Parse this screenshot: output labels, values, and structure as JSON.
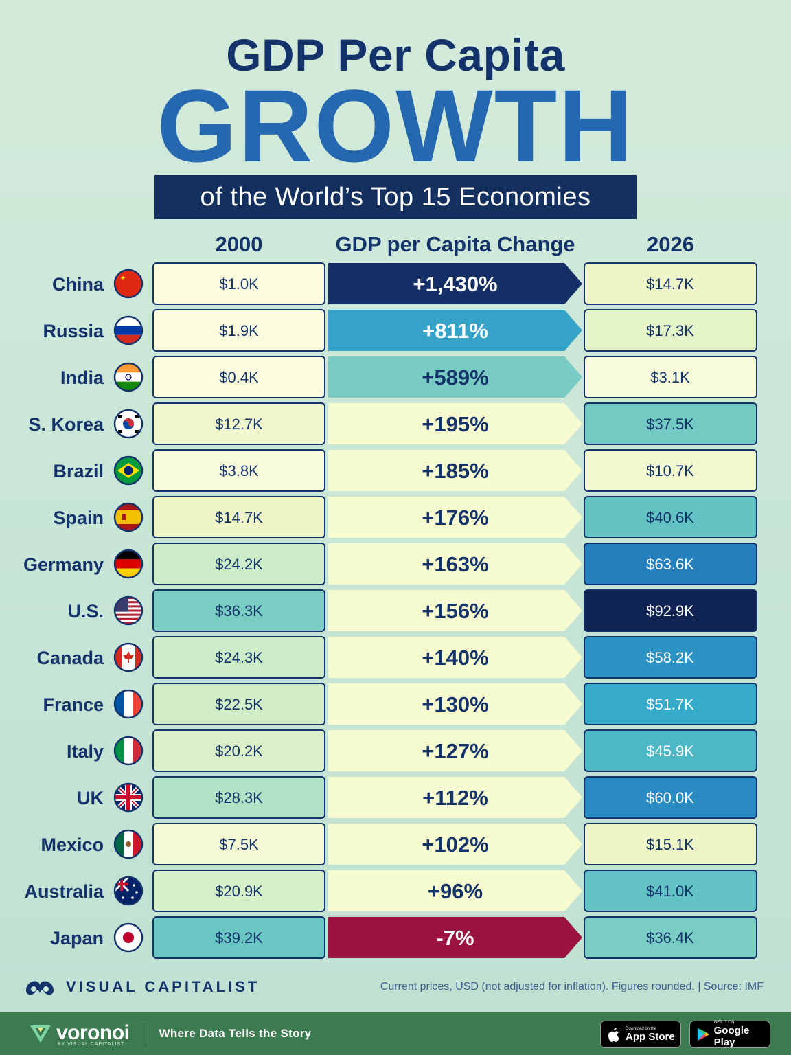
{
  "header": {
    "title_line1": "GDP Per Capita",
    "title_line2": "GROWTH",
    "subtitle": "of the World’s Top 15 Economies"
  },
  "columns": {
    "col_2000": "2000",
    "col_change": "GDP per Capita Change",
    "col_2026": "2026"
  },
  "colors": {
    "navy": "#13305f",
    "blue": "#2b8fc4",
    "teal": "#6dc4c0",
    "pale": "#fbfbdc",
    "negative": "#9b1340",
    "background": "#c9e6d7"
  },
  "chart_data": {
    "type": "table",
    "title": "GDP Per Capita GROWTH of the World’s Top 15 Economies",
    "columns": [
      "2000",
      "GDP per Capita Change",
      "2026"
    ],
    "rows": [
      {
        "country": "China",
        "flag": "china-flag-icon",
        "gdp_2000": 1.0,
        "label_2000": "$1.0K",
        "change_pct": 1430,
        "change_label": "+1,430%",
        "gdp_2026": 14.7,
        "label_2026": "$14.7K"
      },
      {
        "country": "Russia",
        "flag": "russia-flag-icon",
        "gdp_2000": 1.9,
        "label_2000": "$1.9K",
        "change_pct": 811,
        "change_label": "+811%",
        "gdp_2026": 17.3,
        "label_2026": "$17.3K"
      },
      {
        "country": "India",
        "flag": "india-flag-icon",
        "gdp_2000": 0.4,
        "label_2000": "$0.4K",
        "change_pct": 589,
        "change_label": "+589%",
        "gdp_2026": 3.1,
        "label_2026": "$3.1K"
      },
      {
        "country": "S. Korea",
        "flag": "south-korea-flag-icon",
        "gdp_2000": 12.7,
        "label_2000": "$12.7K",
        "change_pct": 195,
        "change_label": "+195%",
        "gdp_2026": 37.5,
        "label_2026": "$37.5K"
      },
      {
        "country": "Brazil",
        "flag": "brazil-flag-icon",
        "gdp_2000": 3.8,
        "label_2000": "$3.8K",
        "change_pct": 185,
        "change_label": "+185%",
        "gdp_2026": 10.7,
        "label_2026": "$10.7K"
      },
      {
        "country": "Spain",
        "flag": "spain-flag-icon",
        "gdp_2000": 14.7,
        "label_2000": "$14.7K",
        "change_pct": 176,
        "change_label": "+176%",
        "gdp_2026": 40.6,
        "label_2026": "$40.6K"
      },
      {
        "country": "Germany",
        "flag": "germany-flag-icon",
        "gdp_2000": 24.2,
        "label_2000": "$24.2K",
        "change_pct": 163,
        "change_label": "+163%",
        "gdp_2026": 63.6,
        "label_2026": "$63.6K"
      },
      {
        "country": "U.S.",
        "flag": "usa-flag-icon",
        "gdp_2000": 36.3,
        "label_2000": "$36.3K",
        "change_pct": 156,
        "change_label": "+156%",
        "gdp_2026": 92.9,
        "label_2026": "$92.9K"
      },
      {
        "country": "Canada",
        "flag": "canada-flag-icon",
        "gdp_2000": 24.3,
        "label_2000": "$24.3K",
        "change_pct": 140,
        "change_label": "+140%",
        "gdp_2026": 58.2,
        "label_2026": "$58.2K"
      },
      {
        "country": "France",
        "flag": "france-flag-icon",
        "gdp_2000": 22.5,
        "label_2000": "$22.5K",
        "change_pct": 130,
        "change_label": "+130%",
        "gdp_2026": 51.7,
        "label_2026": "$51.7K"
      },
      {
        "country": "Italy",
        "flag": "italy-flag-icon",
        "gdp_2000": 20.2,
        "label_2000": "$20.2K",
        "change_pct": 127,
        "change_label": "+127%",
        "gdp_2026": 45.9,
        "label_2026": "$45.9K"
      },
      {
        "country": "UK",
        "flag": "uk-flag-icon",
        "gdp_2000": 28.3,
        "label_2000": "$28.3K",
        "change_pct": 112,
        "change_label": "+112%",
        "gdp_2026": 60.0,
        "label_2026": "$60.0K"
      },
      {
        "country": "Mexico",
        "flag": "mexico-flag-icon",
        "gdp_2000": 7.5,
        "label_2000": "$7.5K",
        "change_pct": 102,
        "change_label": "+102%",
        "gdp_2026": 15.1,
        "label_2026": "$15.1K"
      },
      {
        "country": "Australia",
        "flag": "australia-flag-icon",
        "gdp_2000": 20.9,
        "label_2000": "$20.9K",
        "change_pct": 96,
        "change_label": "+96%",
        "gdp_2026": 41.0,
        "label_2026": "$41.0K"
      },
      {
        "country": "Japan",
        "flag": "japan-flag-icon",
        "gdp_2000": 39.2,
        "label_2000": "$39.2K",
        "change_pct": -7,
        "change_label": "-7%",
        "gdp_2026": 36.4,
        "label_2026": "$36.4K"
      }
    ]
  },
  "footer": {
    "brand": "VISUAL CAPITALIST",
    "note": "Current prices, USD (not adjusted for inflation). Figures rounded. | Source: IMF",
    "voronoi_name": "voronoi",
    "voronoi_by": "BY VISUAL CAPITALIST",
    "tagline": "Where Data Tells the Story",
    "appstore_small": "Download on the",
    "appstore_big": "App Store",
    "googleplay_small": "GET IT ON",
    "googleplay_big": "Google Play"
  }
}
